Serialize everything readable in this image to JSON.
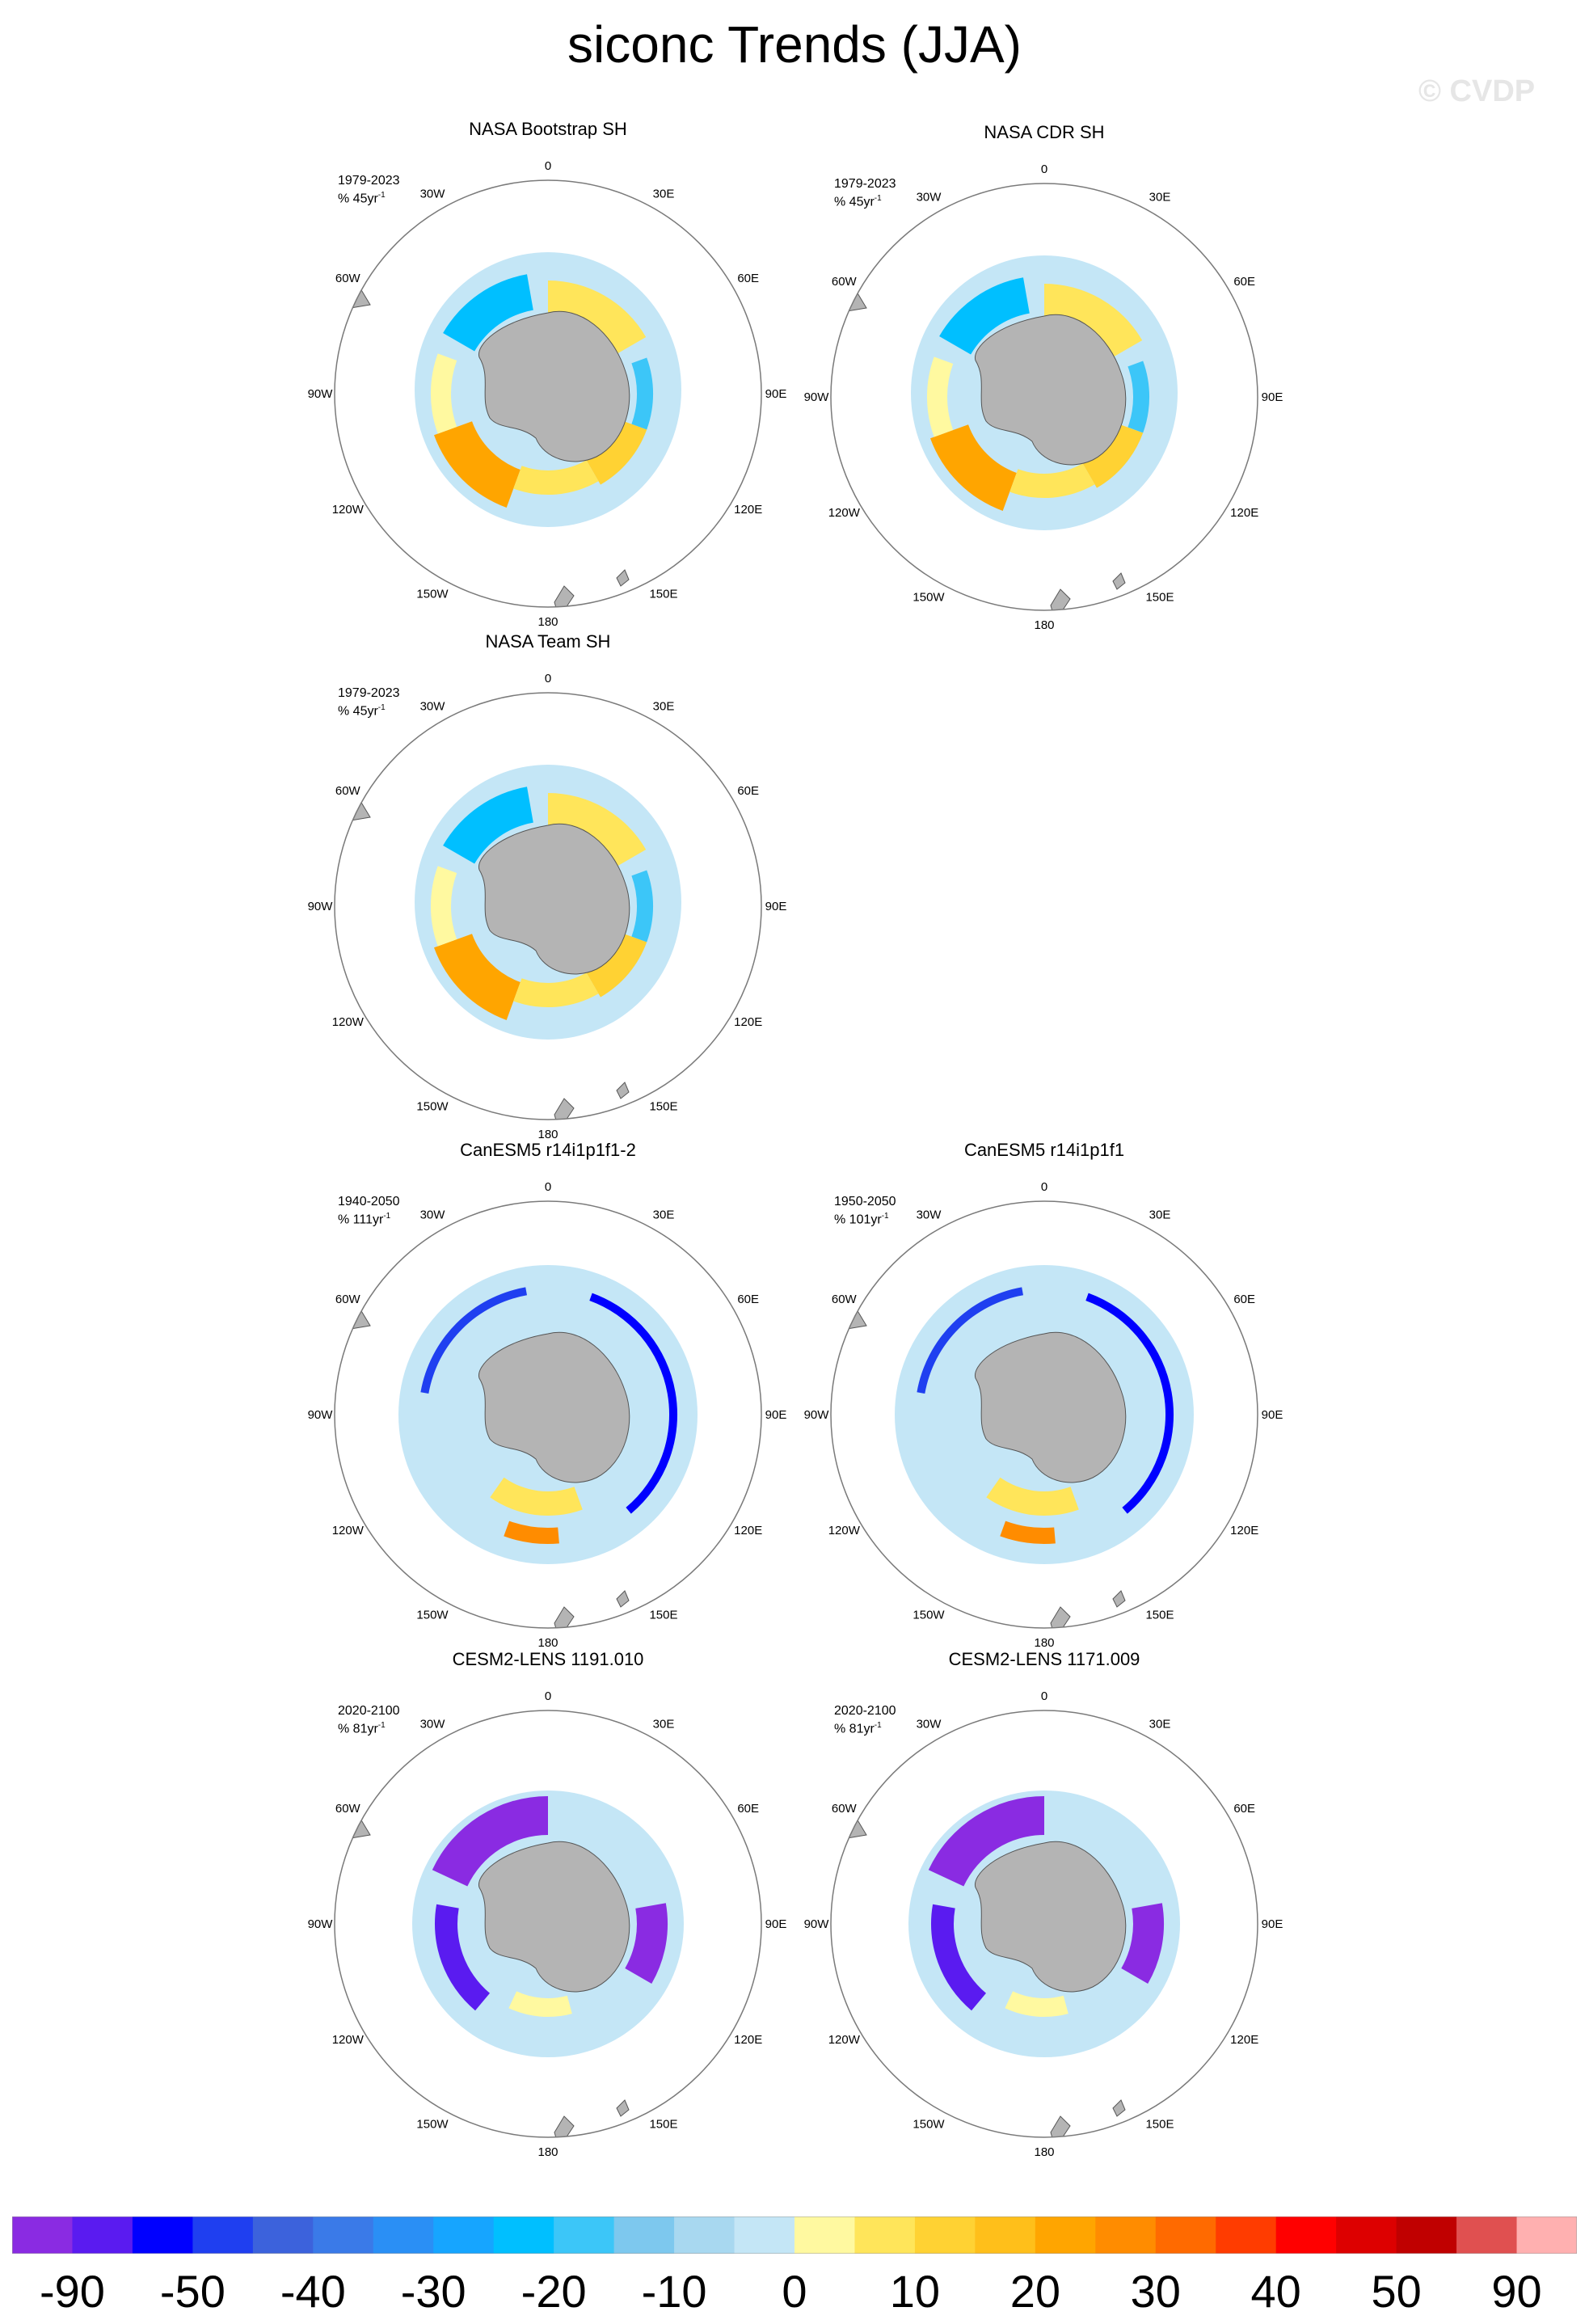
{
  "title": "siconc Trends (JJA)",
  "watermark": "© CVDP",
  "panels": [
    {
      "title": "NASA Bootstrap SH",
      "period": "1979-2023",
      "unit_prefix": "% 45yr",
      "pattern": "obs"
    },
    {
      "title": "NASA CDR SH",
      "period": "1979-2023",
      "unit_prefix": "% 45yr",
      "pattern": "obs"
    },
    {
      "title": "NASA Team SH",
      "period": "1979-2023",
      "unit_prefix": "% 45yr",
      "pattern": "obs"
    },
    {
      "title": "CanESM5 r14i1p1f1-2",
      "period": "1940-2050",
      "unit_prefix": "% 111yr",
      "pattern": "canesm"
    },
    {
      "title": "CanESM5 r14i1p1f1",
      "period": "1950-2050",
      "unit_prefix": "% 101yr",
      "pattern": "canesm"
    },
    {
      "title": "CESM2-LENS 1191.010",
      "period": "2020-2100",
      "unit_prefix": "% 81yr",
      "pattern": "cesm"
    },
    {
      "title": "CESM2-LENS 1171.009",
      "period": "2020-2100",
      "unit_prefix": "% 81yr",
      "pattern": "cesm"
    }
  ],
  "unit_exponent": "-1",
  "longitude_labels": [
    "0",
    "30E",
    "60E",
    "90E",
    "120E",
    "150E",
    "180",
    "150W",
    "120W",
    "90W",
    "60W",
    "30W"
  ],
  "colorbar": {
    "colors": [
      "#8a2be2",
      "#5a1bf0",
      "#0000ff",
      "#1f3ff0",
      "#3c62dc",
      "#3a7ae8",
      "#2a8ff5",
      "#16a5ff",
      "#00bfff",
      "#3cc6f8",
      "#7dc8ee",
      "#a8d8f0",
      "#c4e6f6",
      "#fff9a0",
      "#ffe55a",
      "#ffd233",
      "#ffbf1a",
      "#ffa500",
      "#ff8c00",
      "#ff6a00",
      "#ff3c00",
      "#ff0000",
      "#dd0000",
      "#c00000",
      "#e05050",
      "#ffb0b0"
    ],
    "labels": [
      "-90",
      "-50",
      "-40",
      "-30",
      "-20",
      "-10",
      "0",
      "10",
      "20",
      "30",
      "40",
      "50",
      "90"
    ]
  },
  "chart_data": {
    "type": "heatmap",
    "title": "siconc Trends (JJA)",
    "variable": "siconc",
    "season": "JJA",
    "units": "% per period",
    "color_levels": [
      -90,
      -50,
      -40,
      -30,
      -20,
      -10,
      0,
      10,
      20,
      30,
      40,
      50,
      90
    ],
    "projection": "south polar stereographic",
    "panels": [
      {
        "name": "NASA Bootstrap SH",
        "period": "1979-2023"
      },
      {
        "name": "NASA CDR SH",
        "period": "1979-2023"
      },
      {
        "name": "NASA Team SH",
        "period": "1979-2023"
      },
      {
        "name": "CanESM5 r14i1p1f1-2",
        "period": "1940-2050"
      },
      {
        "name": "CanESM5 r14i1p1f1",
        "period": "1950-2050"
      },
      {
        "name": "CESM2-LENS 1191.010",
        "period": "2020-2100"
      },
      {
        "name": "CESM2-LENS 1171.009",
        "period": "2020-2100"
      }
    ]
  }
}
